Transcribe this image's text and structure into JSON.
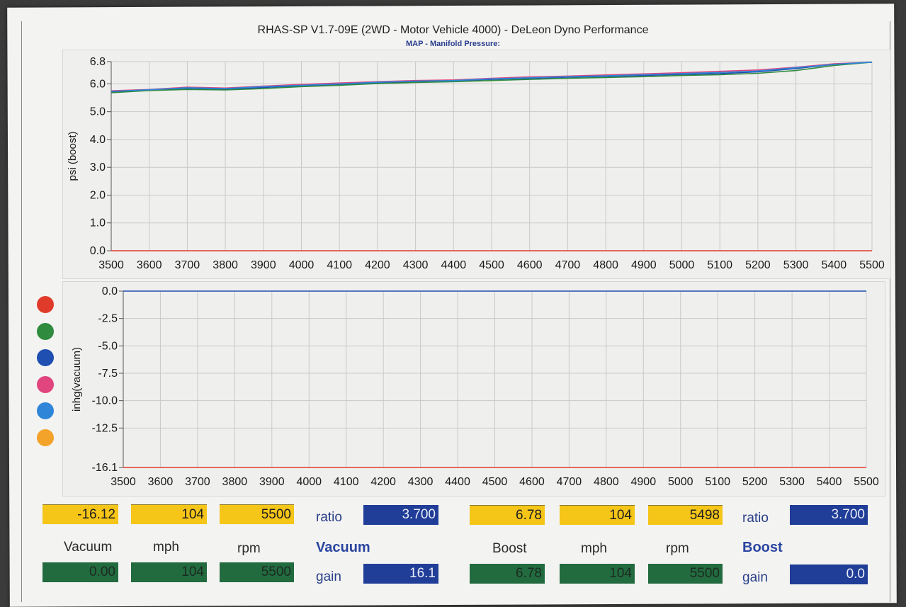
{
  "header": {
    "title": "RHAS-SP V1.7-09E  (2WD - Motor Vehicle 4000) - DeLeon Dyno Performance",
    "subtitle": "MAP - Manifold Pressure:"
  },
  "legend_dot_colors": [
    "#e03b2a",
    "#2f8b3e",
    "#1f4fb0",
    "#e0457e",
    "#2f86d8",
    "#f3a22a"
  ],
  "chart_data": [
    {
      "type": "line",
      "ylabel": "psi (boost)",
      "xlim": [
        3500,
        5500
      ],
      "ylim": [
        0.0,
        6.8
      ],
      "xticks": [
        "3500",
        "3600",
        "3700",
        "3800",
        "3900",
        "4000",
        "4100",
        "4200",
        "4300",
        "4400",
        "4500",
        "4600",
        "4700",
        "4800",
        "4900",
        "5000",
        "5100",
        "5200",
        "5300",
        "5400",
        "5500"
      ],
      "yticks": [
        "0.0",
        "1.0",
        "2.0",
        "3.0",
        "4.0",
        "5.0",
        "6.0",
        "6.8"
      ],
      "grid": true,
      "x": [
        3500,
        3600,
        3700,
        3800,
        3900,
        4000,
        4100,
        4200,
        4300,
        4400,
        4500,
        4600,
        4700,
        4800,
        4900,
        5000,
        5100,
        5200,
        5300,
        5400,
        5500
      ],
      "series": [
        {
          "color": "#e0457e",
          "values": [
            5.75,
            5.8,
            5.88,
            5.85,
            5.92,
            5.98,
            6.03,
            6.08,
            6.12,
            6.14,
            6.2,
            6.25,
            6.28,
            6.32,
            6.36,
            6.4,
            6.45,
            6.5,
            6.6,
            6.72,
            6.78
          ]
        },
        {
          "color": "#1f4fb0",
          "values": [
            5.7,
            5.78,
            5.84,
            5.8,
            5.87,
            5.93,
            5.98,
            6.04,
            6.08,
            6.11,
            6.16,
            6.2,
            6.24,
            6.27,
            6.3,
            6.34,
            6.37,
            6.43,
            6.55,
            6.7,
            6.78
          ]
        },
        {
          "color": "#2f8b3e",
          "values": [
            5.68,
            5.76,
            5.8,
            5.78,
            5.83,
            5.9,
            5.95,
            6.01,
            6.05,
            6.08,
            6.12,
            6.16,
            6.2,
            6.23,
            6.26,
            6.3,
            6.33,
            6.38,
            6.48,
            6.66,
            6.78
          ]
        },
        {
          "color": "#2f86d8",
          "values": [
            5.73,
            5.79,
            5.86,
            5.83,
            5.9,
            5.95,
            6.0,
            6.06,
            6.1,
            6.12,
            6.18,
            6.22,
            6.26,
            6.29,
            6.33,
            6.37,
            6.41,
            6.46,
            6.58,
            6.7,
            6.78
          ]
        },
        {
          "color": "#e03b2a",
          "values": [
            0.0,
            0.0,
            0.0,
            0.0,
            0.0,
            0.0,
            0.0,
            0.0,
            0.0,
            0.0,
            0.0,
            0.0,
            0.0,
            0.0,
            0.0,
            0.0,
            0.0,
            0.0,
            0.0,
            0.0,
            0.0
          ]
        }
      ]
    },
    {
      "type": "line",
      "ylabel": "inhg(vacuum)",
      "xlim": [
        3500,
        5500
      ],
      "ylim": [
        -16.1,
        0.0
      ],
      "xticks": [
        "3500",
        "3600",
        "3700",
        "3800",
        "3900",
        "4000",
        "4100",
        "4200",
        "4300",
        "4400",
        "4500",
        "4600",
        "4700",
        "4800",
        "4900",
        "5000",
        "5100",
        "5200",
        "5300",
        "5400",
        "5500"
      ],
      "yticks": [
        "0.0",
        "-2.5",
        "-5.0",
        "-7.5",
        "-10.0",
        "-12.5",
        "-16.1"
      ],
      "grid": true,
      "x": [
        3500,
        5500
      ],
      "series": [
        {
          "color": "#1f4fb0",
          "values": [
            0.0,
            0.0
          ]
        },
        {
          "color": "#e03b2a",
          "values": [
            -16.1,
            -16.1
          ]
        }
      ]
    }
  ],
  "readouts": {
    "vacuum": {
      "top": [
        "-16.12",
        "104",
        "5500"
      ],
      "labels": [
        "Vacuum",
        "mph",
        "rpm"
      ],
      "bottom": [
        "0.00",
        "104",
        "5500"
      ],
      "ratio_label": "ratio",
      "ratio_value": "3.700",
      "section_label": "Vacuum",
      "gain_label": "gain",
      "gain_value": "16.1"
    },
    "boost": {
      "top": [
        "6.78",
        "104",
        "5498"
      ],
      "labels": [
        "Boost",
        "mph",
        "rpm"
      ],
      "bottom": [
        "6.78",
        "104",
        "5500"
      ],
      "ratio_label": "ratio",
      "ratio_value": "3.700",
      "section_label": "Boost",
      "gain_label": "gain",
      "gain_value": "0.0"
    }
  }
}
